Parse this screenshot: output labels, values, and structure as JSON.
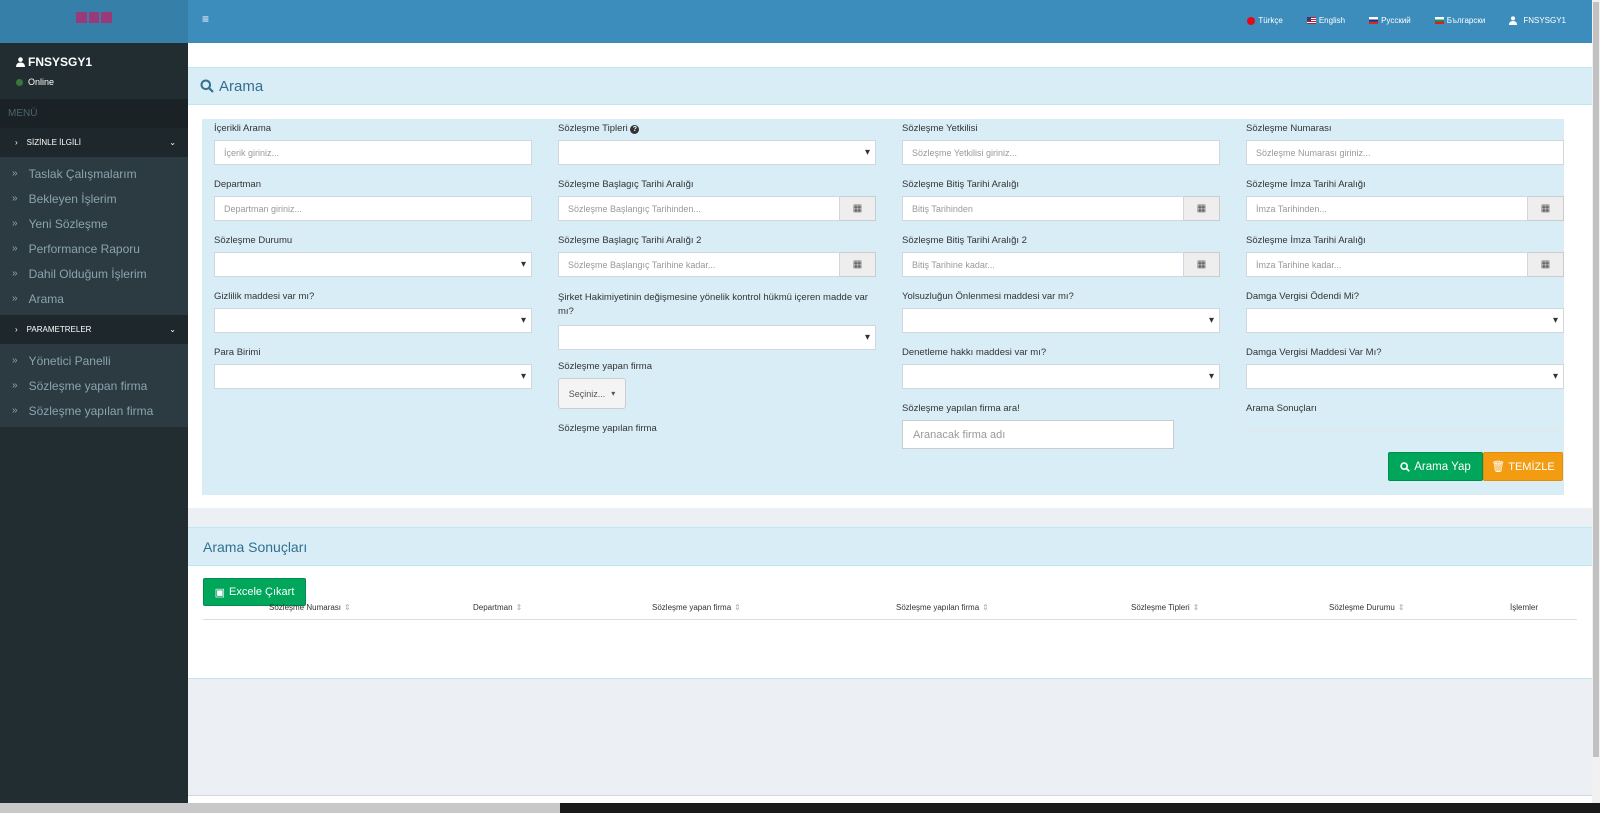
{
  "user": {
    "name": "FNSYSGY1",
    "status": "Online"
  },
  "sidebar": {
    "menu_header": "MENÜ",
    "sections": [
      {
        "label": "SİZİNLE İLGİLİ",
        "items": [
          "Taslak Çalışmalarım",
          "Bekleyen İşlerim",
          "Yeni Sözleşme",
          "Performance Raporu",
          "Dahil Olduğum İşlerim",
          "Arama"
        ]
      },
      {
        "label": "PARAMETRELER",
        "items": [
          "Yönetici Panelli",
          "Sözleşme yapan firma",
          "Sözleşme yapılan firma"
        ]
      }
    ]
  },
  "topbar": {
    "languages": [
      "Türkçe",
      "English",
      "Русский",
      "Български"
    ],
    "user_label": "FNSYSGY1"
  },
  "search": {
    "title": "Arama",
    "fields": {
      "icerikli_arama": {
        "label": "İçerikli Arama",
        "placeholder": "İçerik giriniz..."
      },
      "sozlesme_tipleri": {
        "label": "Sözleşme Tipleri"
      },
      "sozlesme_yetkilisi": {
        "label": "Sözleşme Yetkilisi",
        "placeholder": "Sözleşme Yetkilisi giriniz..."
      },
      "sozlesme_numarasi": {
        "label": "Sözleşme Numarası",
        "placeholder": "Sözleşme Numarası giriniz..."
      },
      "departman": {
        "label": "Departman",
        "placeholder": "Departman giriniz..."
      },
      "baslangic_tarihi": {
        "label": "Sözleşme Başlagıç Tarihi Aralığı",
        "placeholder": "Sözleşme Başlangıç Tarihinden..."
      },
      "bitis_tarihi": {
        "label": "Sözleşme Bitiş Tarihi Aralığı",
        "placeholder": "Bitiş Tarihinden"
      },
      "imza_tarihi": {
        "label": "Sözleşme İmza Tarihi Aralığı",
        "placeholder": "İmza Tarihinden..."
      },
      "sozlesme_durumu": {
        "label": "Sözleşme Durumu"
      },
      "baslangic_tarihi_2": {
        "label": "Sözleşme Başlagıç Tarihi Aralığı 2",
        "placeholder": "Sözleşme Başlangıç Tarihine kadar..."
      },
      "bitis_tarihi_2": {
        "label": "Sözleşme Bitiş Tarihi Aralığı 2",
        "placeholder": "Bitiş Tarihine kadar..."
      },
      "imza_tarihi_2": {
        "label": "Sözleşme İmza Tarihi Aralığı",
        "placeholder": "İmza Tarihine kadar..."
      },
      "gizlilik": {
        "label": "Gizlilik maddesi var mı?"
      },
      "sirket_hakimiyeti": {
        "label": "Şirket Hakimiyetinin değişmesine yönelik kontrol hükmü içeren madde var mı?"
      },
      "yolsuzluk": {
        "label": "Yolsuzluğun Önlenmesi maddesi var mı?"
      },
      "damga_odendi": {
        "label": "Damga Vergisi Ödendi Mi?"
      },
      "para_birimi": {
        "label": "Para Birimi"
      },
      "yapan_firma": {
        "label": "Sözleşme yapan firma",
        "button": "Seçiniz..."
      },
      "yapilan_firma": {
        "label": "Sözleşme yapılan firma"
      },
      "denetleme": {
        "label": "Denetleme hakkı maddesi var mı?"
      },
      "damga_madde": {
        "label": "Damga Vergisi Maddesi Var Mı?"
      },
      "firma_ara": {
        "label": "Sözleşme yapılan firma ara!",
        "placeholder": "Aranacak firma adı"
      },
      "arama_sonuclari": {
        "label": "Arama Sonuçları"
      }
    },
    "search_button": "Arama Yap",
    "clear_button": "TEMİZLE"
  },
  "results": {
    "title": "Arama Sonuçları",
    "excel_button": "Excele Çıkart",
    "columns": [
      "Sözleşme Numarası",
      "Departman",
      "Sözleşme yapan firma",
      "Sözleşme yapılan firma",
      "Sözleşme Tipleri",
      "Sözleşme Durumu",
      "İşlemler"
    ]
  }
}
